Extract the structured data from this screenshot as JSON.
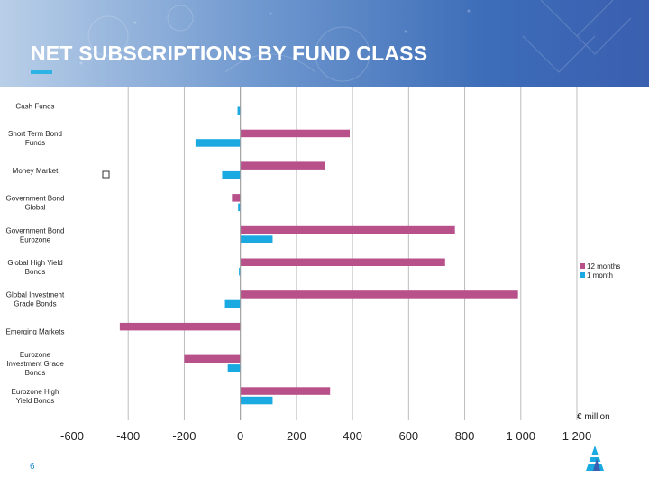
{
  "header": {
    "title": "NET SUBSCRIPTIONS BY FUND CLASS"
  },
  "colors": {
    "series_12m": "#b8508a",
    "series_1m": "#1aa9e1",
    "title_text": "#ffffff",
    "accent": "#2bb3e6"
  },
  "chart_data": {
    "type": "bar",
    "orientation": "horizontal",
    "categories": [
      [
        "Cash Funds"
      ],
      [
        "Short Term Bond",
        "Funds"
      ],
      [
        "Money Market"
      ],
      [
        "Government Bond",
        "Global"
      ],
      [
        "Government Bond",
        "Eurozone"
      ],
      [
        "Global High Yield",
        "Bonds"
      ],
      [
        "Global Investment",
        "Grade Bonds"
      ],
      [
        "Emerging Markets"
      ],
      [
        "Eurozone",
        "Investment Grade",
        "Bonds"
      ],
      [
        "Eurozone High",
        "Yield Bonds"
      ]
    ],
    "series": [
      {
        "name": "12 months",
        "values": [
          0,
          390,
          300,
          -30,
          765,
          730,
          990,
          -430,
          -200,
          320
        ]
      },
      {
        "name": "1 month",
        "values": [
          -10,
          -160,
          -65,
          -8,
          115,
          -5,
          -55,
          0,
          -45,
          115
        ]
      }
    ],
    "xlim": [
      -600,
      1200
    ],
    "xticks": [
      -600,
      -400,
      -200,
      0,
      200,
      400,
      600,
      800,
      1000,
      1200
    ],
    "xtick_labels": [
      "-600",
      "-400",
      "-200",
      "0",
      "200",
      "400",
      "600",
      "800",
      "1 000",
      "1 200"
    ],
    "unit_label": "€ million",
    "grid": true,
    "legend_position": "right"
  },
  "footer": {
    "page_number": "6"
  }
}
